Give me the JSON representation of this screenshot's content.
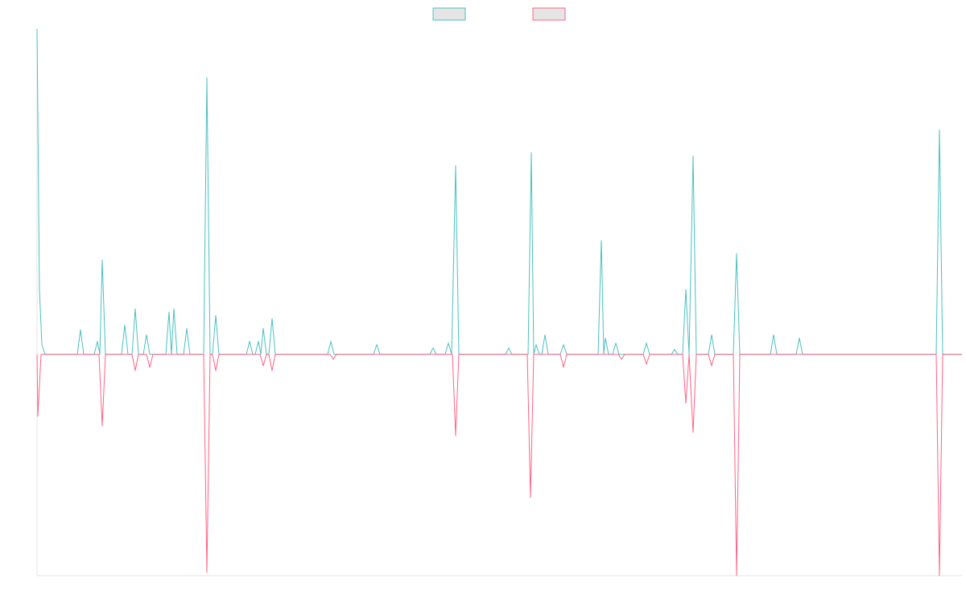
{
  "chart_data": {
    "type": "line",
    "legend": "top",
    "xlim": [
      0,
      1149
    ],
    "ylim": [
      -68,
      100
    ],
    "series": [
      {
        "color": "#4bc0c0",
        "x": [
          0,
          3,
          6,
          10,
          50,
          54,
          58,
          71,
          75,
          78,
          81,
          85,
          105,
          109,
          113,
          118,
          122,
          126,
          132,
          136,
          140,
          160,
          164,
          167,
          170,
          174,
          182,
          186,
          190,
          207,
          211,
          215,
          218,
          222,
          226,
          260,
          264,
          268,
          271,
          275,
          278,
          281,
          285,
          288,
          292,
          296,
          361,
          365,
          369,
          418,
          422,
          426,
          488,
          492,
          496,
          507,
          511,
          515,
          520,
          524,
          582,
          586,
          590,
          610,
          614,
          617,
          620,
          624,
          627,
          631,
          635,
          650,
          654,
          658,
          697,
          701,
          704,
          706,
          710,
          715,
          719,
          723,
          753,
          757,
          761,
          788,
          792,
          796,
          802,
          806,
          810,
          815,
          819,
          834,
          838,
          842,
          865,
          869,
          873,
          911,
          915,
          919,
          943,
          947,
          951,
          1117,
          1121,
          1125,
          1149
        ],
        "values": [
          100,
          20,
          3,
          0,
          0,
          7.6,
          0,
          0,
          4,
          0,
          29,
          0,
          0,
          9,
          0,
          0,
          14,
          0,
          0,
          6,
          0,
          0,
          13,
          0,
          14,
          0,
          0,
          8,
          0,
          0,
          85,
          0,
          0,
          12,
          0,
          0,
          4,
          0,
          0,
          4,
          0,
          8,
          0,
          0,
          11,
          0,
          0,
          4,
          0,
          0,
          3,
          0,
          0,
          2,
          0,
          0,
          3.5,
          0,
          58,
          0,
          0,
          2,
          0,
          0,
          62,
          0,
          3,
          0,
          0,
          6,
          0,
          0,
          3,
          0,
          0,
          35,
          0,
          5,
          0,
          0,
          3.5,
          0,
          0,
          3.5,
          0,
          0,
          1.5,
          0,
          0,
          20,
          0,
          61,
          0,
          0,
          6,
          0,
          0,
          31,
          0,
          0,
          6,
          0,
          0,
          5,
          0,
          0,
          69,
          0,
          0
        ]
      },
      {
        "color": "#ff6384",
        "x": [
          0,
          1,
          5,
          77,
          81,
          85,
          118,
          122,
          126,
          136,
          140,
          144,
          207,
          211,
          215,
          218,
          222,
          226,
          277,
          281,
          285,
          288,
          292,
          296,
          364,
          368,
          372,
          516,
          520,
          524,
          609,
          613,
          617,
          650,
          654,
          658,
          722,
          726,
          730,
          753,
          757,
          761,
          802,
          806,
          810,
          815,
          819,
          834,
          838,
          842,
          865,
          869,
          873,
          1117,
          1121,
          1125,
          1149
        ],
        "values": [
          0,
          -19,
          0,
          0,
          -22,
          0,
          0,
          -5,
          0,
          0,
          -4,
          0,
          0,
          -67,
          0,
          0,
          -5,
          0,
          0,
          -3.5,
          0,
          0,
          -5,
          0,
          0,
          -1.5,
          0,
          0,
          -25,
          0,
          0,
          -44,
          0,
          0,
          -4,
          0,
          0,
          -1.5,
          0,
          0,
          -3,
          0,
          0,
          -15,
          0,
          -24,
          0,
          0,
          -3.5,
          0,
          0,
          -68,
          0,
          0,
          -68,
          0,
          0
        ]
      }
    ]
  }
}
